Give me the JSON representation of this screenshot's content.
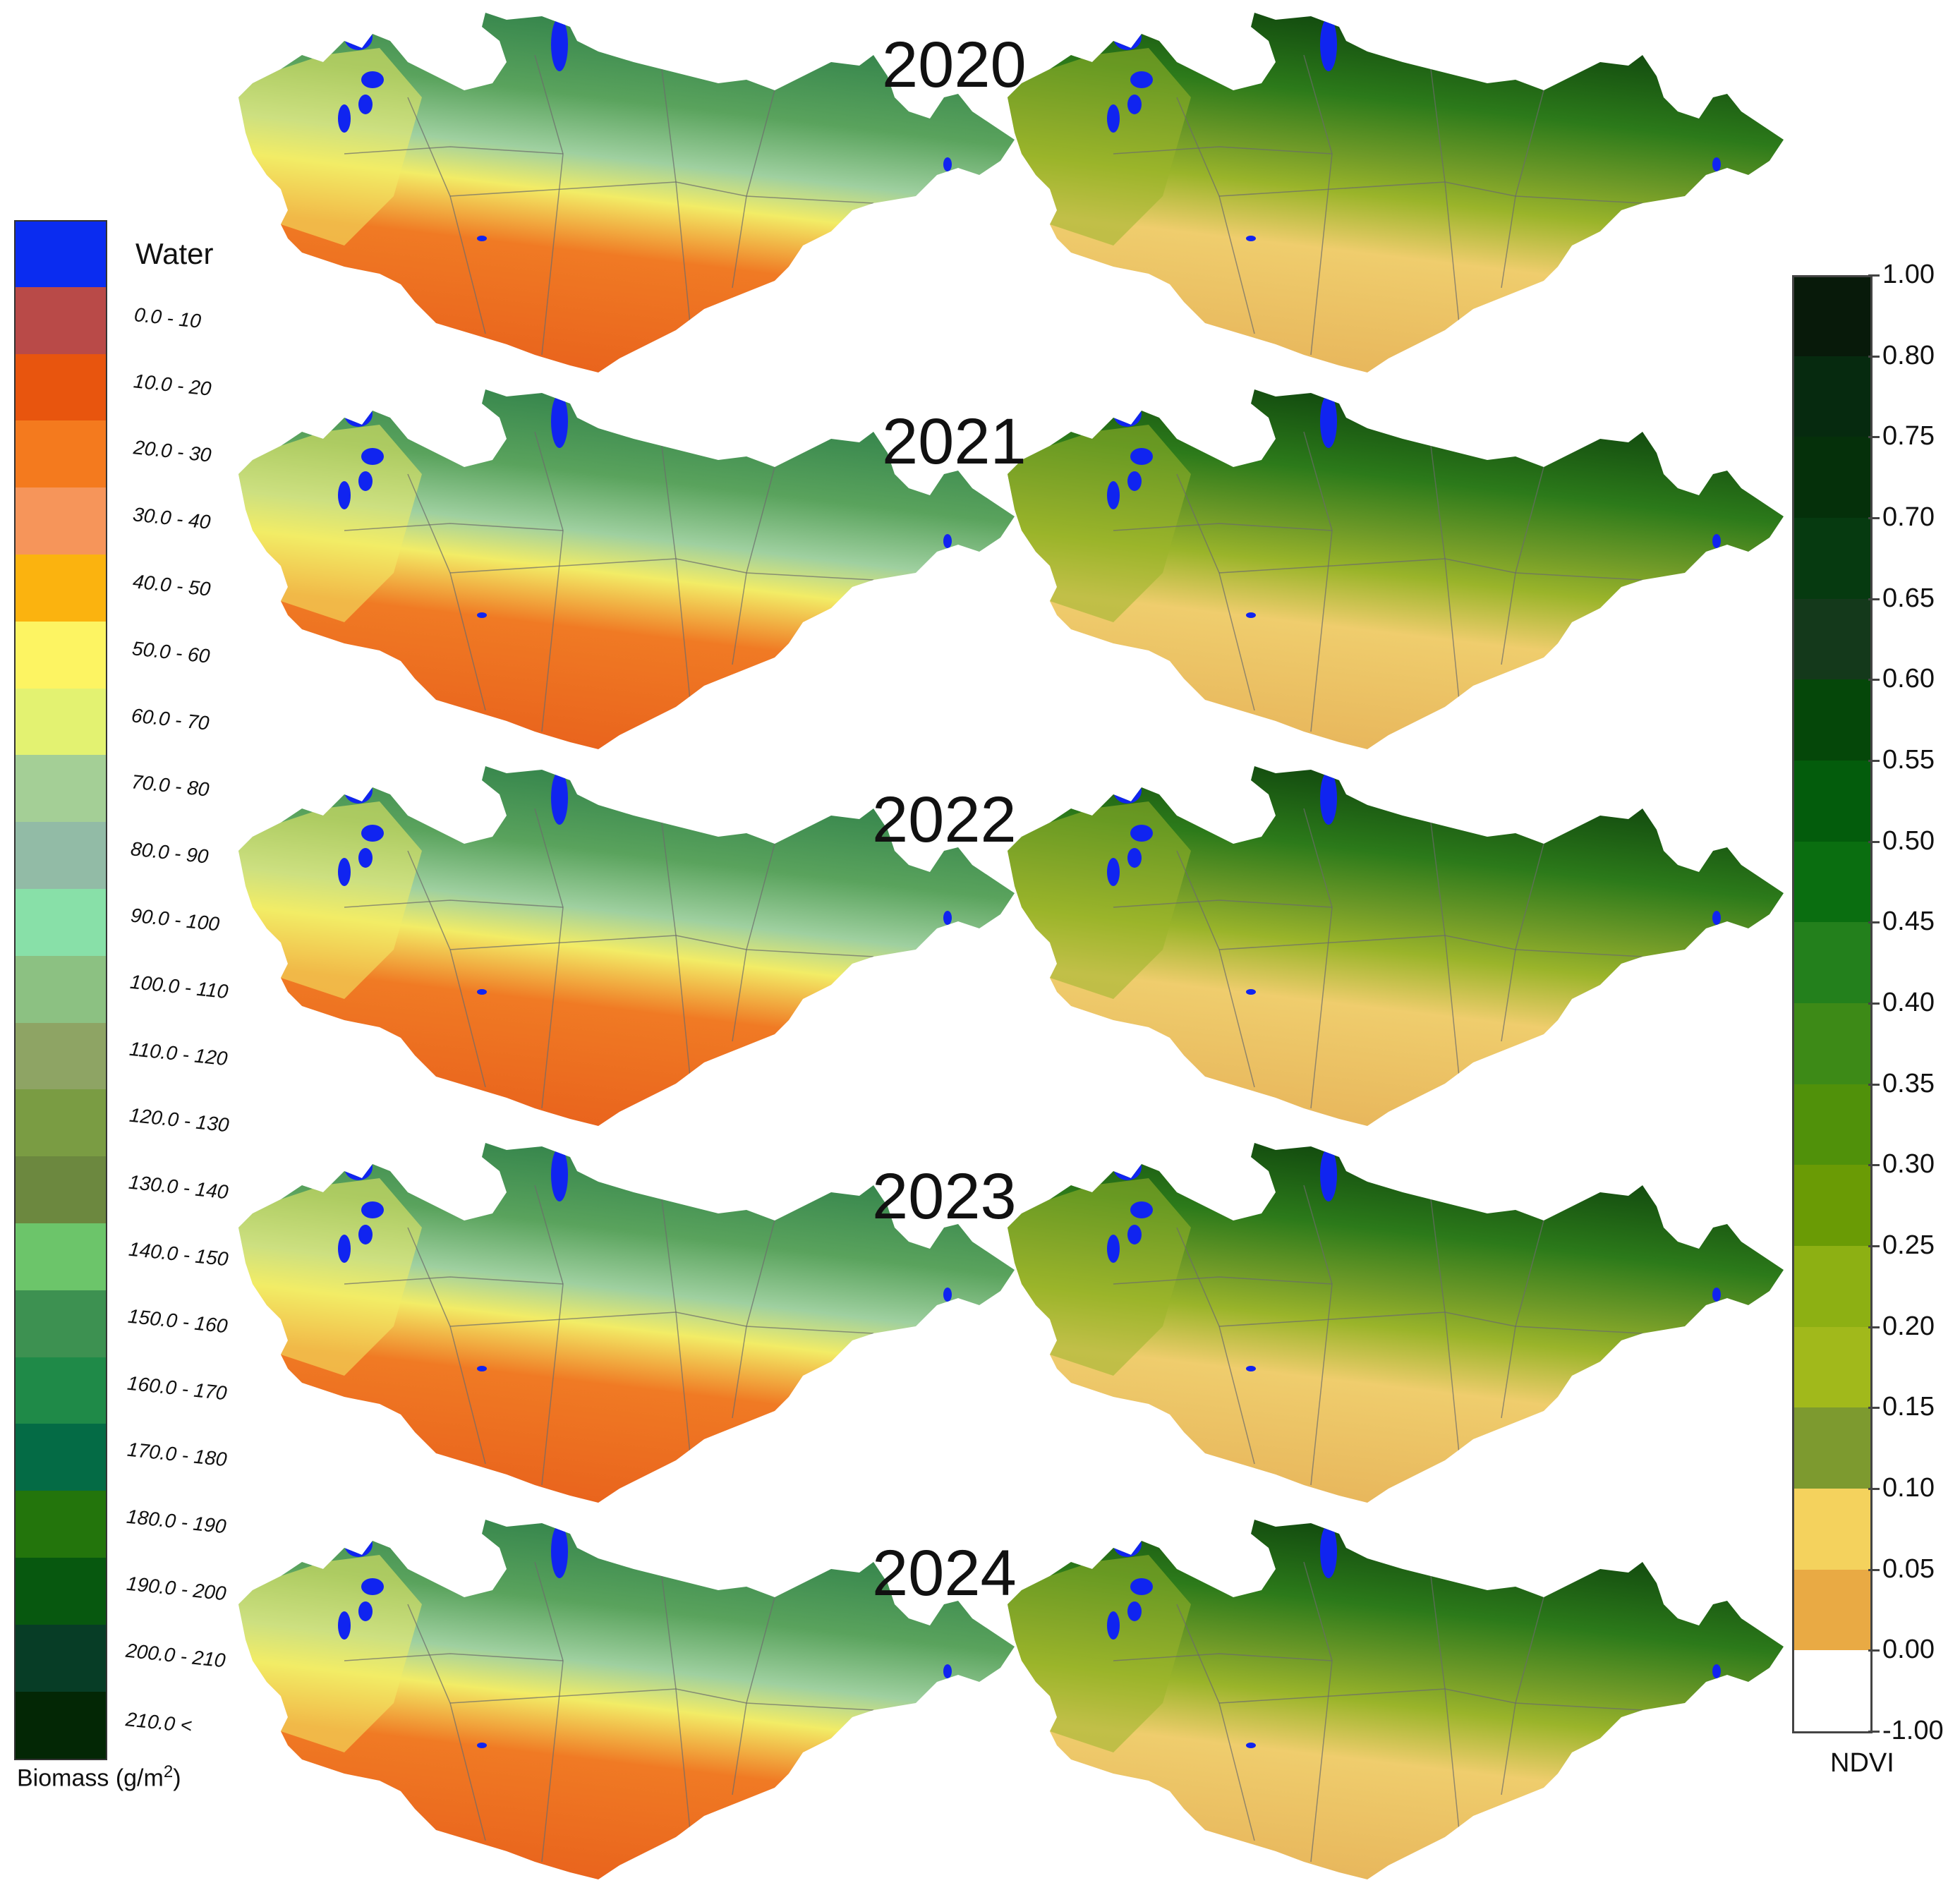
{
  "years": [
    "2020",
    "2021",
    "2022",
    "2023",
    "2024"
  ],
  "biomass_legend": {
    "title": "Biomass (g/m",
    "title_sup": "2",
    "title_close": ")",
    "water_label": "Water",
    "water_color": "#0a2cf0",
    "classes": [
      {
        "label": "0.0 - 10",
        "color": "#b94a48"
      },
      {
        "label": "10.0 - 20",
        "color": "#e8550e"
      },
      {
        "label": "20.0 - 30",
        "color": "#f47a1e"
      },
      {
        "label": "30.0 - 40",
        "color": "#f6955a"
      },
      {
        "label": "40.0 - 50",
        "color": "#fbb30f"
      },
      {
        "label": "50.0 - 60",
        "color": "#fdf462"
      },
      {
        "label": "60.0 - 70",
        "color": "#e3f271"
      },
      {
        "label": "70.0 - 80",
        "color": "#a4cf96"
      },
      {
        "label": "80.0 - 90",
        "color": "#92bba6"
      },
      {
        "label": "90.0 - 100",
        "color": "#88e0a8"
      },
      {
        "label": "100.0 - 110",
        "color": "#8cc182"
      },
      {
        "label": "110.0 - 120",
        "color": "#8ea464"
      },
      {
        "label": "120.0 - 130",
        "color": "#7a9c43"
      },
      {
        "label": "130.0 - 140",
        "color": "#6c883f"
      },
      {
        "label": "140.0 - 150",
        "color": "#6cc56a"
      },
      {
        "label": "150.0 - 160",
        "color": "#3d9151"
      },
      {
        "label": "160.0 - 170",
        "color": "#1f8a48"
      },
      {
        "label": "170.0 - 180",
        "color": "#046b45"
      },
      {
        "label": "180.0 - 190",
        "color": "#23750c"
      },
      {
        "label": "190.0 - 200",
        "color": "#07580f"
      },
      {
        "label": "200.0 - 210",
        "color": "#073d26"
      },
      {
        "label": "210.0 <",
        "color": "#032705"
      }
    ]
  },
  "ndvi_legend": {
    "title": "NDVI",
    "ticks": [
      "1.00",
      "0.80",
      "0.75",
      "0.70",
      "0.65",
      "0.60",
      "0.55",
      "0.50",
      "0.45",
      "0.40",
      "0.35",
      "0.30",
      "0.25",
      "0.20",
      "0.15",
      "0.10",
      "0.05",
      "0.00",
      "-1.00"
    ],
    "colors": [
      "#081a0a",
      "#062a0f",
      "#05300a",
      "#063a10",
      "#14391b",
      "#054709",
      "#035c0c",
      "#0a6e10",
      "#23801c",
      "#3d8a17",
      "#50910a",
      "#6a9b05",
      "#8db013",
      "#a1b91b",
      "#7d9a2f",
      "#f4d25d",
      "#e9aa44",
      "#e8d57e",
      "#ffffff"
    ]
  },
  "map_colors": {
    "biomass": {
      "desert": "#f07a24",
      "desert_dark": "#e8611c",
      "steppe_yellow": "#f2ec66",
      "steppe_light": "#9fd0a0",
      "forest_mid": "#5aa35d",
      "forest_dark": "#2d7e48",
      "border": "#6b6b6b"
    },
    "ndvi": {
      "desert": "#efcd6d",
      "desert_dark": "#e7b45a",
      "steppe": "#9ab42a",
      "steppe_olive": "#6f9a28",
      "forest_mid": "#2c7a1a",
      "forest_dark": "#0c3f0c",
      "border": "#6b6b6b"
    },
    "water": "#1024f0"
  }
}
